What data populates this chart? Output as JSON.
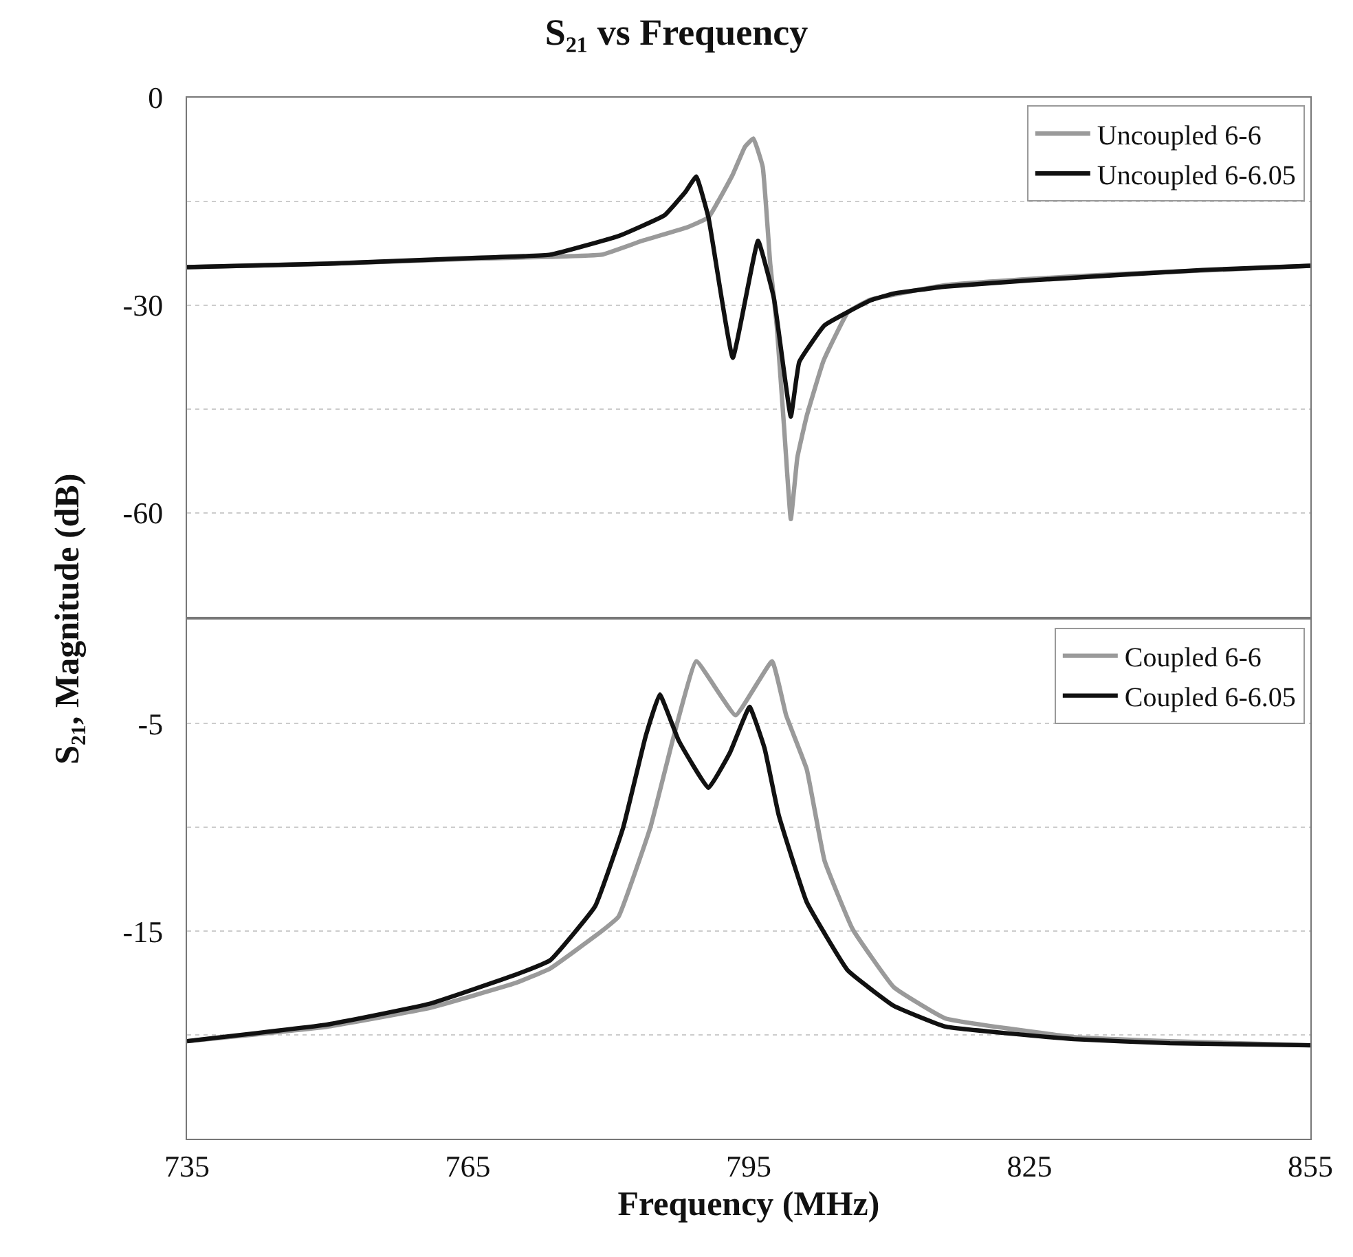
{
  "chart_data": [
    {
      "type": "line",
      "title": "S₂₁ vs Frequency",
      "ylabel": "S₂₁, Magnitude (dB)",
      "xlim": [
        735,
        855
      ],
      "xticks": [
        735,
        765,
        795,
        825,
        855
      ],
      "ylim": [
        -75,
        0
      ],
      "yticks": [
        0,
        {
          "value": -15,
          "label": null
        },
        -30,
        {
          "value": -45,
          "label": null
        },
        -60,
        {
          "value": -75,
          "label": null
        }
      ],
      "grid": "y",
      "legend": "top right",
      "tick_labels": "y",
      "marker": "none",
      "line_style": "solid",
      "series": [
        {
          "name": "Uncoupled 6-6",
          "color": "#9a9a9a",
          "x": [
            735,
            750,
            765,
            773.8,
            779.3,
            783.6,
            788.5,
            790.7,
            793.3,
            794.6,
            795.5,
            796.5,
            797.3,
            798,
            798.8,
            799.5,
            800.2,
            801.2,
            803,
            805.6,
            808,
            816,
            825,
            834.3,
            845,
            855
          ],
          "values": [
            -24.5,
            -24,
            -23.3,
            -23,
            -22.7,
            -20.7,
            -18.7,
            -17.3,
            -11.1,
            -7.1,
            -5.9,
            -10,
            -24,
            -33,
            -48,
            -60.9,
            -52,
            -46,
            -38,
            -31,
            -29.2,
            -27.1,
            -26.2,
            -25.5,
            -24.9,
            -24.3
          ]
        },
        {
          "name": "Uncoupled 6-6.05",
          "color": "#111111",
          "x": [
            735,
            750,
            765,
            773.8,
            781.1,
            786,
            788.2,
            789.4,
            790.7,
            793.3,
            796,
            797.7,
            799.5,
            800.4,
            803.1,
            808,
            810.5,
            816,
            825.2,
            843.5,
            855
          ],
          "values": [
            -24.5,
            -24,
            -23.2,
            -22.7,
            -20,
            -17,
            -13.7,
            -11.4,
            -17.3,
            -37.6,
            -20.7,
            -29,
            -46.1,
            -38.2,
            -32.9,
            -29.3,
            -28.3,
            -27.3,
            -26.4,
            -24.9,
            -24.3
          ]
        }
      ]
    },
    {
      "type": "line",
      "xlabel": "Frequency (MHz)",
      "xlim": [
        735,
        855
      ],
      "xticks": [
        735,
        765,
        795,
        825,
        855
      ],
      "ylim": [
        -25,
        0
      ],
      "yticks": [
        {
          "value": 0,
          "label": null
        },
        -5,
        {
          "value": -10,
          "label": null
        },
        -15,
        {
          "value": -20,
          "label": null
        },
        {
          "value": -25,
          "label": null
        }
      ],
      "grid": "y",
      "legend": "top right",
      "marker": "none",
      "line_style": "solid",
      "series": [
        {
          "name": "Coupled 6-6",
          "color": "#9a9a9a",
          "x": [
            735,
            750,
            760.9,
            770.1,
            773.8,
            779.3,
            781.1,
            784.5,
            787,
            789.4,
            793.6,
            797.5,
            799,
            801.2,
            803.1,
            806.1,
            810.5,
            816,
            829.7,
            840,
            855
          ],
          "values": [
            -20.3,
            -19.6,
            -18.7,
            -17.5,
            -16.8,
            -15,
            -14.3,
            -10,
            -5.6,
            -2,
            -4.6,
            -2,
            -4.6,
            -7.2,
            -11.6,
            -14.9,
            -17.7,
            -19.2,
            -20.1,
            -20.3,
            -20.5
          ]
        },
        {
          "name": "Coupled 6-6.05",
          "color": "#111111",
          "x": [
            735,
            750,
            760.9,
            770.1,
            773.8,
            778.6,
            781.6,
            784,
            785.5,
            787.5,
            790.7,
            793,
            795.1,
            796.7,
            798.2,
            801.2,
            805.6,
            810.5,
            816,
            829.7,
            840,
            855
          ],
          "values": [
            -20.3,
            -19.5,
            -18.5,
            -17.1,
            -16.4,
            -13.8,
            -10,
            -5.6,
            -3.6,
            -5.8,
            -8.1,
            -6.4,
            -4.2,
            -6.2,
            -9.4,
            -13.6,
            -16.9,
            -18.6,
            -19.6,
            -20.2,
            -20.4,
            -20.5
          ]
        }
      ]
    }
  ]
}
